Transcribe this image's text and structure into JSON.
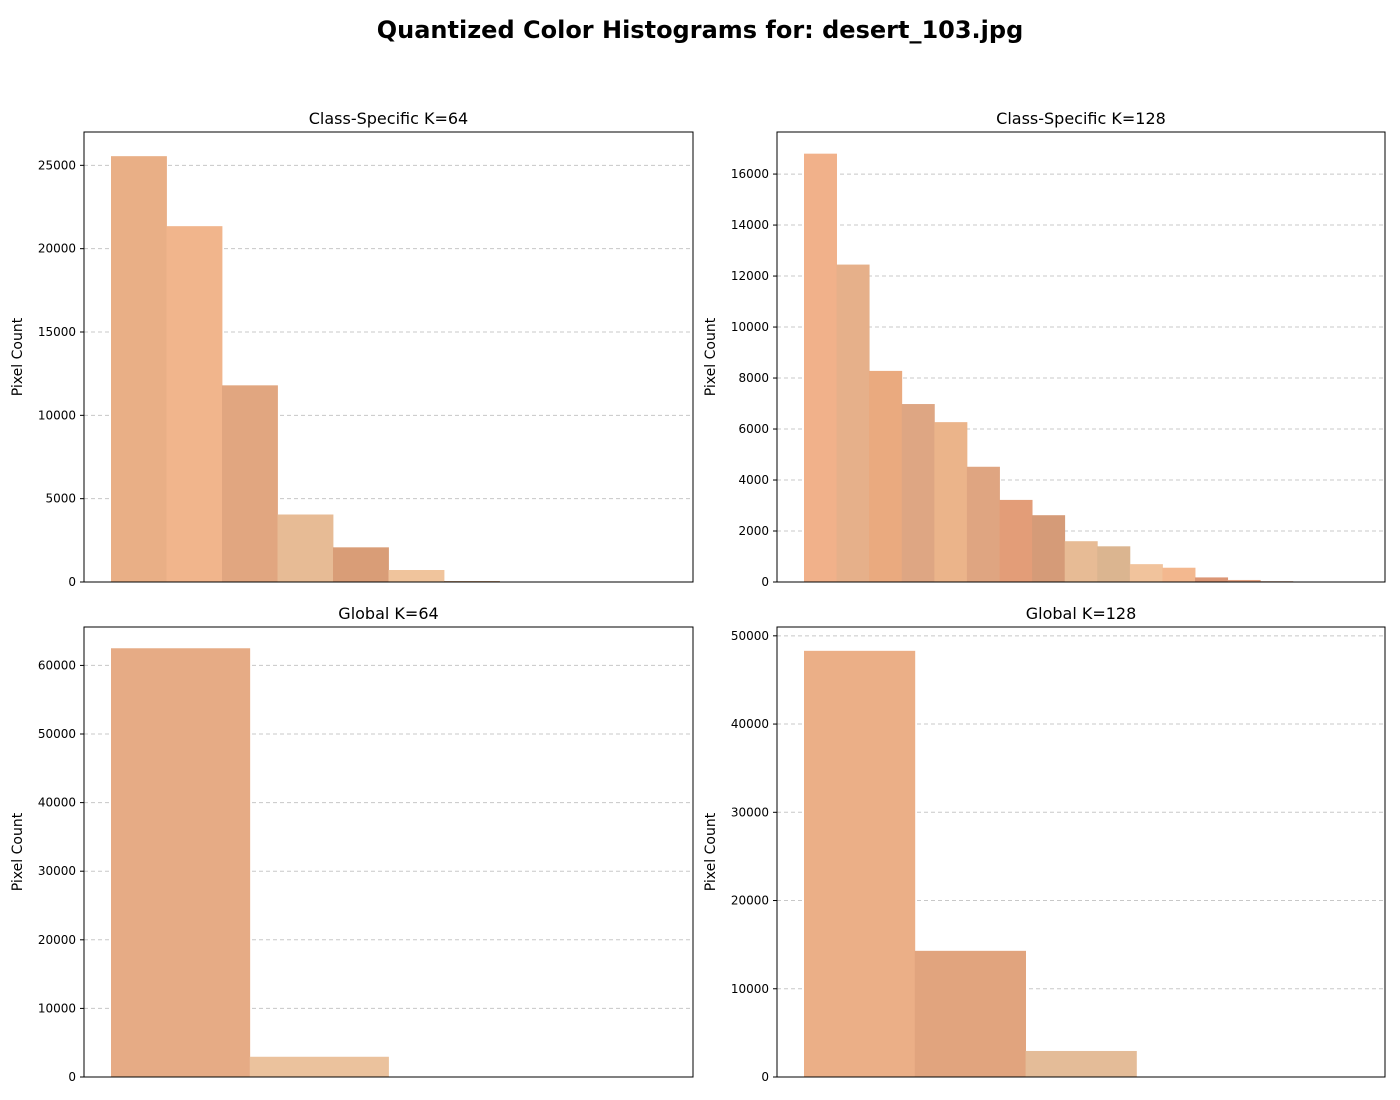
{
  "figure": {
    "title": "Quantized Color Histograms for: desert_103.jpg"
  },
  "chart_data": [
    {
      "type": "bar",
      "title": "Class-Specific K=64",
      "ylabel": "Pixel Count",
      "ylim": [
        0,
        27000
      ],
      "yticks": [
        0,
        5000,
        10000,
        15000,
        20000,
        25000
      ],
      "grid": "y-dashed",
      "xticks": "none",
      "bins": 10,
      "values": [
        25550,
        21350,
        11800,
        4050,
        2080,
        720,
        60,
        0,
        0,
        0
      ],
      "colors": [
        "#e9af86",
        "#f1b58c",
        "#e1a680",
        "#e7bb95",
        "#d99d77",
        "#f0c49c",
        "#caa07e",
        "#e8b08a",
        "#e8b08a",
        "#e8b08a"
      ]
    },
    {
      "type": "bar",
      "title": "Class-Specific K=128",
      "ylabel": "Pixel Count",
      "ylim": [
        0,
        17650
      ],
      "yticks": [
        0,
        2000,
        4000,
        6000,
        8000,
        10000,
        12000,
        14000,
        16000
      ],
      "grid": "y-dashed",
      "xticks": "none",
      "bins": 17,
      "values": [
        16800,
        12450,
        8280,
        6980,
        6270,
        4520,
        3220,
        2620,
        1600,
        1400,
        700,
        560,
        180,
        80,
        30,
        0,
        0
      ],
      "colors": [
        "#f1b18a",
        "#e6b08a",
        "#eaaa7f",
        "#dea683",
        "#ebb48a",
        "#dfa581",
        "#e39d78",
        "#d59b78",
        "#e7bb95",
        "#dbb590",
        "#f1c39c",
        "#f3b88f",
        "#db9675",
        "#e3a282",
        "#c89575",
        "#e8b08a",
        "#e8b08a"
      ]
    },
    {
      "type": "bar",
      "title": "Global K=64",
      "ylabel": "Pixel Count",
      "ylim": [
        0,
        65600
      ],
      "yticks": [
        0,
        10000,
        20000,
        30000,
        40000,
        50000,
        60000
      ],
      "grid": "y-dashed",
      "xticks": "none",
      "bins": 4,
      "values": [
        62500,
        2950,
        0,
        0
      ],
      "colors": [
        "#e6ab85",
        "#ebc29d",
        "#e8b08a",
        "#e8b08a"
      ]
    },
    {
      "type": "bar",
      "title": "Global K=128",
      "ylabel": "Pixel Count",
      "ylim": [
        0,
        51000
      ],
      "yticks": [
        0,
        10000,
        20000,
        30000,
        40000,
        50000
      ],
      "grid": "y-dashed",
      "xticks": "none",
      "bins": 5,
      "values": [
        48300,
        14300,
        2950,
        0,
        0
      ],
      "colors": [
        "#ebaf87",
        "#e1a47e",
        "#e4bc98",
        "#e8b08a",
        "#e8b08a"
      ]
    }
  ]
}
